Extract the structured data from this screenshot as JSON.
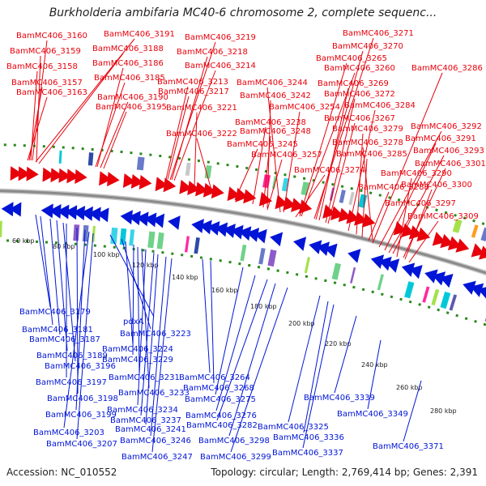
{
  "title": "Burkholderia ambifaria MC40-6 chromosome 2, complete sequenc...",
  "footer": {
    "accession": "Accession: NC_010552",
    "topology": "Topology: circular; Length: 2,769,414 bp; Genes: 2,391"
  },
  "colors": {
    "forward_gene": "#e8000b",
    "reverse_gene": "#0015d6",
    "backbone": "#8a8a8a",
    "scale_dots": "#2a8a1a",
    "label_text_black": "#222222"
  },
  "scale_ticks": [
    "60 kbp",
    "80 kbp",
    "100 kbp",
    "120 kbp",
    "140 kbp",
    "160 kbp",
    "180 kbp",
    "200 kbp",
    "220 kbp",
    "240 kbp",
    "260 kbp",
    "280 kbp"
  ],
  "top_labels": [
    "BamMC406_3160",
    "BamMC406_3191",
    "BamMC406_3219",
    "BamMC406_3271",
    "BamMC406_3159",
    "BamMC406_3188",
    "BamMC406_3218",
    "BamMC406_3270",
    "BamMC406_3158",
    "BamMC406_3186",
    "BamMC406_3214",
    "BamMC406_3265",
    "BamMC406_3157",
    "BamMC406_3185",
    "BamMC406_3213",
    "BamMC406_3260",
    "BamMC406_3286",
    "BamMC406_3163",
    "BamMC406_3190",
    "BamMC406_3217",
    "BamMC406_3244",
    "BamMC406_3269",
    "BamMC406_3195",
    "BamMC406_3221",
    "BamMC406_3242",
    "BamMC406_3272",
    "BamMC406_3254",
    "BamMC406_3284",
    "BamMC406_3238",
    "BamMC406_3267",
    "BamMC406_3222",
    "BamMC406_3248",
    "BamMC406_3279",
    "BamMC406_3292",
    "BamMC406_3245",
    "BamMC406_3278",
    "BamMC406_3291",
    "BamMC406_3257",
    "BamMC406_3285",
    "BamMC406_3293",
    "BamMC406_3274",
    "BamMC406_3301",
    "BamMC406_3290",
    "BamMC406_3288",
    "BamMC406_3300",
    "BamMC406_3297",
    "BamMC406_3309"
  ],
  "bottom_labels": [
    "BamMC406_3179",
    "pdxA",
    "BamMC406_3181",
    "BamMC406_3223",
    "BamMC406_3187",
    "BamMC406_3224",
    "BamMC406_3189",
    "BamMC406_3229",
    "BamMC406_3196",
    "BamMC406_3197",
    "BamMC406_3231",
    "BamMC406_3264",
    "BamMC406_3233",
    "BamMC406_3268",
    "BamMC406_3198",
    "BamMC406_3275",
    "BamMC406_3234",
    "BamMC406_3339",
    "BamMC406_3199",
    "BamMC406_3237",
    "BamMC406_3276",
    "BamMC406_3349",
    "BamMC406_3241",
    "BamMC406_3282",
    "BamMC406_3325",
    "BamMC406_3203",
    "BamMC406_3246",
    "BamMC406_3298",
    "BamMC406_3336",
    "BamMC406_3207",
    "BamMC406_3371",
    "BamMC406_3337",
    "BamMC406_3247",
    "BamMC406_3299"
  ]
}
